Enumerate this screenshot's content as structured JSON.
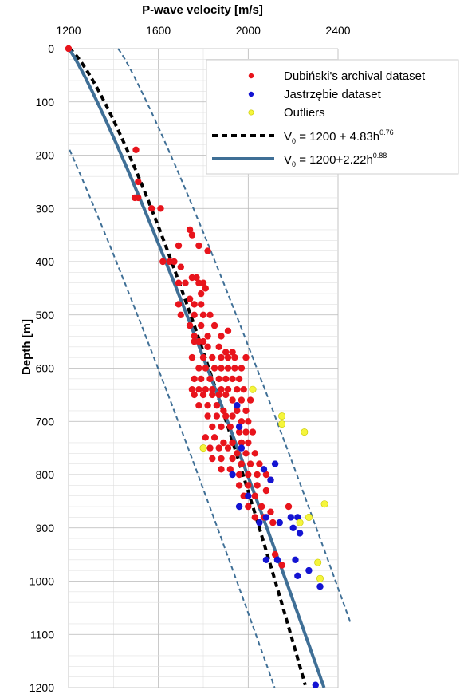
{
  "chart_data": {
    "type": "scatter",
    "xlabel": "P-wave velocity [m/s]",
    "ylabel": "Depth [m]",
    "xlim": [
      1200,
      2400
    ],
    "ylim": [
      0,
      1200
    ],
    "x_ticks": [
      "1200",
      "1600",
      "2000",
      "2400"
    ],
    "y_ticks": [
      "0",
      "100",
      "200",
      "300",
      "400",
      "500",
      "600",
      "700",
      "800",
      "900",
      "1000",
      "1100",
      "1200"
    ],
    "x_axis_position": "top",
    "y_axis_inverted": true,
    "grid": true,
    "legend_position": "top-right",
    "legend": {
      "dubinski": "Dubiński's archival dataset",
      "jastrzebie": "Jastrzębie dataset",
      "outliers": "Outliers",
      "fit_dashed_main": "V",
      "fit_dashed_sub": "0",
      "fit_dashed_rest": " = 1200 + 4.83h",
      "fit_dashed_exp": "0.76",
      "fit_solid_main": "V",
      "fit_solid_sub": "0",
      "fit_solid_rest": " = 1200+2.22h",
      "fit_solid_exp": "0.88"
    },
    "colors": {
      "dubinski": "#e8141c",
      "jastrzebie": "#1414d2",
      "outliers": "#f5f53c",
      "fit_solid": "#3f6f96",
      "fit_dashed": "#000000",
      "band": "#3f6f96"
    },
    "fits": [
      {
        "style": "dashed",
        "formula": {
          "a": 1200,
          "b": 4.83,
          "c": 0.76
        }
      },
      {
        "style": "solid",
        "formula": {
          "a": 1200,
          "b": 2.22,
          "c": 0.88
        }
      }
    ],
    "band_offset": 220,
    "series": [
      {
        "key": "dubinski",
        "points": [
          [
            1200,
            0
          ],
          [
            1500,
            190
          ],
          [
            1510,
            250
          ],
          [
            1495,
            280
          ],
          [
            1510,
            280
          ],
          [
            1570,
            300
          ],
          [
            1610,
            300
          ],
          [
            1740,
            340
          ],
          [
            1750,
            350
          ],
          [
            1690,
            370
          ],
          [
            1780,
            370
          ],
          [
            1620,
            400
          ],
          [
            1650,
            400
          ],
          [
            1670,
            400
          ],
          [
            1700,
            410
          ],
          [
            1820,
            380
          ],
          [
            1690,
            440
          ],
          [
            1720,
            440
          ],
          [
            1750,
            430
          ],
          [
            1770,
            430
          ],
          [
            1780,
            440
          ],
          [
            1800,
            440
          ],
          [
            1810,
            450
          ],
          [
            1790,
            460
          ],
          [
            1690,
            480
          ],
          [
            1740,
            470
          ],
          [
            1760,
            480
          ],
          [
            1790,
            480
          ],
          [
            1700,
            500
          ],
          [
            1760,
            500
          ],
          [
            1800,
            500
          ],
          [
            1830,
            500
          ],
          [
            1740,
            520
          ],
          [
            1790,
            520
          ],
          [
            1850,
            520
          ],
          [
            1760,
            540
          ],
          [
            1820,
            540
          ],
          [
            1880,
            540
          ],
          [
            1910,
            530
          ],
          [
            1760,
            550
          ],
          [
            1780,
            550
          ],
          [
            1800,
            550
          ],
          [
            1820,
            560
          ],
          [
            1870,
            560
          ],
          [
            1900,
            570
          ],
          [
            1930,
            570
          ],
          [
            1990,
            580
          ],
          [
            1750,
            580
          ],
          [
            1800,
            580
          ],
          [
            1840,
            580
          ],
          [
            1880,
            580
          ],
          [
            1910,
            580
          ],
          [
            1940,
            580
          ],
          [
            1780,
            600
          ],
          [
            1810,
            600
          ],
          [
            1850,
            600
          ],
          [
            1880,
            600
          ],
          [
            1910,
            600
          ],
          [
            1940,
            600
          ],
          [
            1970,
            600
          ],
          [
            1760,
            620
          ],
          [
            1790,
            620
          ],
          [
            1830,
            620
          ],
          [
            1870,
            620
          ],
          [
            1900,
            620
          ],
          [
            1930,
            620
          ],
          [
            1960,
            620
          ],
          [
            1750,
            640
          ],
          [
            1780,
            640
          ],
          [
            1810,
            640
          ],
          [
            1840,
            640
          ],
          [
            1880,
            640
          ],
          [
            1910,
            640
          ],
          [
            1950,
            640
          ],
          [
            1980,
            640
          ],
          [
            1760,
            650
          ],
          [
            1800,
            650
          ],
          [
            1840,
            650
          ],
          [
            1870,
            650
          ],
          [
            1900,
            650
          ],
          [
            1930,
            660
          ],
          [
            1970,
            660
          ],
          [
            2010,
            660
          ],
          [
            1780,
            670
          ],
          [
            1820,
            670
          ],
          [
            1860,
            670
          ],
          [
            1890,
            680
          ],
          [
            1950,
            680
          ],
          [
            1990,
            680
          ],
          [
            1820,
            690
          ],
          [
            1860,
            690
          ],
          [
            1900,
            690
          ],
          [
            1930,
            690
          ],
          [
            1970,
            700
          ],
          [
            2000,
            700
          ],
          [
            1840,
            710
          ],
          [
            1880,
            710
          ],
          [
            1920,
            710
          ],
          [
            1960,
            720
          ],
          [
            1990,
            720
          ],
          [
            2020,
            720
          ],
          [
            1810,
            730
          ],
          [
            1850,
            730
          ],
          [
            1890,
            740
          ],
          [
            1930,
            740
          ],
          [
            1970,
            740
          ],
          [
            2000,
            740
          ],
          [
            1830,
            750
          ],
          [
            1870,
            750
          ],
          [
            1910,
            750
          ],
          [
            1950,
            760
          ],
          [
            1990,
            760
          ],
          [
            2030,
            760
          ],
          [
            1840,
            770
          ],
          [
            1880,
            770
          ],
          [
            1930,
            770
          ],
          [
            1970,
            780
          ],
          [
            2010,
            780
          ],
          [
            2050,
            780
          ],
          [
            1880,
            790
          ],
          [
            1920,
            790
          ],
          [
            1960,
            800
          ],
          [
            2000,
            800
          ],
          [
            2040,
            800
          ],
          [
            2080,
            800
          ],
          [
            2100,
            810
          ],
          [
            1960,
            820
          ],
          [
            2000,
            820
          ],
          [
            2040,
            820
          ],
          [
            2080,
            830
          ],
          [
            1980,
            840
          ],
          [
            2030,
            840
          ],
          [
            2000,
            860
          ],
          [
            2060,
            860
          ],
          [
            2100,
            870
          ],
          [
            2030,
            880
          ],
          [
            2070,
            880
          ],
          [
            2110,
            890
          ],
          [
            2180,
            860
          ],
          [
            2120,
            950
          ],
          [
            2150,
            970
          ]
        ]
      },
      {
        "key": "jastrzebie",
        "points": [
          [
            1950,
            670
          ],
          [
            1960,
            710
          ],
          [
            1970,
            750
          ],
          [
            1930,
            800
          ],
          [
            2000,
            840
          ],
          [
            2070,
            790
          ],
          [
            2120,
            780
          ],
          [
            2100,
            810
          ],
          [
            1960,
            860
          ],
          [
            2050,
            890
          ],
          [
            2080,
            880
          ],
          [
            2140,
            890
          ],
          [
            2190,
            880
          ],
          [
            2220,
            880
          ],
          [
            2200,
            900
          ],
          [
            2230,
            910
          ],
          [
            2080,
            960
          ],
          [
            2130,
            960
          ],
          [
            2210,
            960
          ],
          [
            2220,
            990
          ],
          [
            2270,
            980
          ],
          [
            2320,
            1010
          ],
          [
            2300,
            1195
          ]
        ]
      },
      {
        "key": "outliers",
        "points": [
          [
            1800,
            750
          ],
          [
            2020,
            640
          ],
          [
            2150,
            690
          ],
          [
            2150,
            705
          ],
          [
            2250,
            720
          ],
          [
            2270,
            880
          ],
          [
            2340,
            855
          ],
          [
            2230,
            890
          ],
          [
            2310,
            965
          ],
          [
            2320,
            995
          ]
        ]
      }
    ]
  }
}
